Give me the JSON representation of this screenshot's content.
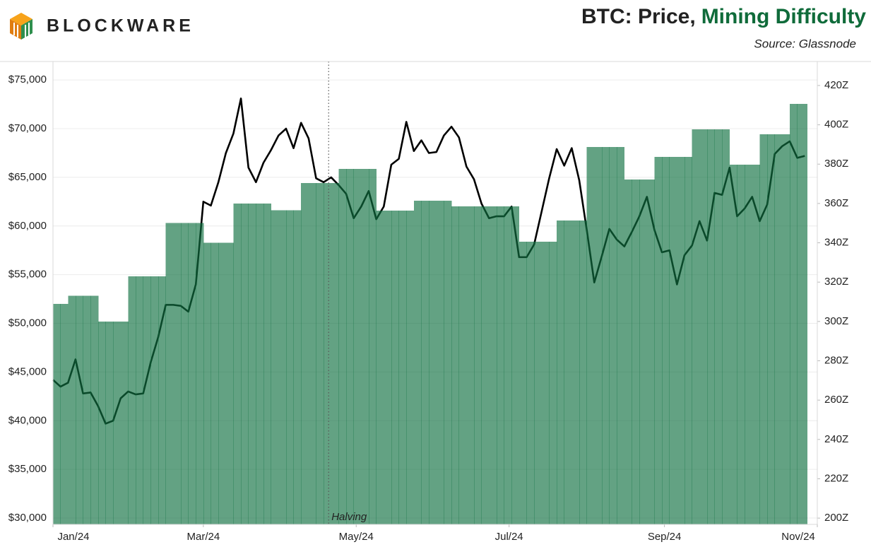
{
  "brand": "BLOCKWARE",
  "chart_data": {
    "type": "line",
    "title": [
      "BTC: Price,",
      "Mining Difficulty"
    ],
    "source": "Source: Glassnode",
    "annotation": {
      "text": "Halving",
      "x": 110
    },
    "x": [
      0,
      3,
      6,
      9,
      12,
      15,
      18,
      21,
      24,
      27,
      30,
      33,
      36,
      39,
      42,
      45,
      48,
      51,
      54,
      57,
      60,
      63,
      66,
      69,
      72,
      75,
      78,
      81,
      84,
      87,
      90,
      93,
      96,
      99,
      102,
      105,
      108,
      111,
      114,
      117,
      120,
      123,
      126,
      129,
      132,
      135,
      138,
      141,
      144,
      147,
      150,
      153,
      156,
      159,
      162,
      165,
      168,
      171,
      174,
      177,
      180,
      183,
      186,
      189,
      192,
      195,
      198,
      201,
      204,
      207,
      210,
      213,
      216,
      219,
      222,
      225,
      228,
      231,
      234,
      237,
      240,
      243,
      246,
      249,
      252,
      255,
      258,
      261,
      264,
      267,
      270,
      273,
      276,
      279,
      282,
      285,
      288,
      291,
      294,
      297,
      300
    ],
    "xlim": [
      0,
      305
    ],
    "xticks": [
      {
        "value": 0,
        "label": "Jan/24"
      },
      {
        "value": 60,
        "label": "Mar/24"
      },
      {
        "value": 121,
        "label": "May/24"
      },
      {
        "value": 182,
        "label": "Jul/24"
      },
      {
        "value": 244,
        "label": "Sep/24"
      },
      {
        "value": 305,
        "label": "Nov/24"
      }
    ],
    "ylim": [
      29350,
      76900
    ],
    "yticks": [
      {
        "value": 30000,
        "label": "$30,000"
      },
      {
        "value": 35000,
        "label": "$35,000"
      },
      {
        "value": 40000,
        "label": "$40,000"
      },
      {
        "value": 45000,
        "label": "$45,000"
      },
      {
        "value": 50000,
        "label": "$50,000"
      },
      {
        "value": 55000,
        "label": "$55,000"
      },
      {
        "value": 60000,
        "label": "$60,000"
      },
      {
        "value": 65000,
        "label": "$65,000"
      },
      {
        "value": 70000,
        "label": "$70,000"
      },
      {
        "value": 75000,
        "label": "$75,000"
      }
    ],
    "y2lim": [
      196.8,
      432.2
    ],
    "y2ticks": [
      {
        "value": 200,
        "label": "200Z"
      },
      {
        "value": 220,
        "label": "220Z"
      },
      {
        "value": 240,
        "label": "240Z"
      },
      {
        "value": 260,
        "label": "260Z"
      },
      {
        "value": 280,
        "label": "280Z"
      },
      {
        "value": 300,
        "label": "300Z"
      },
      {
        "value": 320,
        "label": "320Z"
      },
      {
        "value": 340,
        "label": "340Z"
      },
      {
        "value": 360,
        "label": "360Z"
      },
      {
        "value": 380,
        "label": "380Z"
      },
      {
        "value": 400,
        "label": "400Z"
      },
      {
        "value": 420,
        "label": "420Z"
      }
    ],
    "grid": true,
    "series": [
      {
        "type": "line",
        "color": "#000000",
        "values": [
          44200,
          43500,
          43900,
          46300,
          42800,
          42900,
          41500,
          39700,
          40000,
          42300,
          43000,
          42700,
          42800,
          46000,
          48600,
          51900,
          51900,
          51800,
          51200,
          54000,
          62500,
          62100,
          64500,
          67500,
          69500,
          73100,
          66000,
          64500,
          66500,
          67800,
          69300,
          70000,
          68000,
          70600,
          69000,
          64900,
          64500,
          65000,
          64200,
          63300,
          60800,
          62000,
          63600,
          60700,
          62000,
          66300,
          66900,
          70700,
          67700,
          68800,
          67500,
          67600,
          69300,
          70200,
          69100,
          66100,
          64800,
          62300,
          60800,
          61000,
          61000,
          62000,
          56800,
          56800,
          58100,
          61500,
          64900,
          67900,
          66200,
          68000,
          64700,
          59600,
          54200,
          56900,
          59700,
          58600,
          57900,
          59400,
          61000,
          63000,
          59600,
          57300,
          57500,
          54000,
          57000,
          58000,
          60500,
          58500,
          63400,
          63200,
          66000,
          61000,
          61800,
          63000,
          60500,
          62200,
          67400,
          68200,
          68700,
          67000,
          67200
        ]
      },
      {
        "type": "area",
        "color": "#107040",
        "axis": "y2",
        "values": [
          309,
          309,
          313,
          313,
          313,
          313,
          300,
          300,
          300,
          300,
          323,
          323,
          323,
          323,
          323,
          350,
          350,
          350,
          350,
          350,
          340,
          340,
          340,
          340,
          360,
          360,
          360,
          360,
          360,
          356.5,
          356.5,
          356.5,
          356.5,
          370.4,
          370.4,
          370.4,
          370.4,
          370.4,
          377.6,
          377.6,
          377.6,
          377.6,
          377.6,
          356.3,
          356.3,
          356.3,
          356.3,
          356.3,
          361.4,
          361.4,
          361.4,
          361.4,
          361.4,
          358.5,
          358.5,
          358.5,
          358.5,
          358.5,
          358.5,
          358.5,
          358.5,
          358.5,
          340.5,
          340.5,
          340.5,
          340.5,
          340.5,
          351.3,
          351.3,
          351.3,
          351.3,
          388.7,
          388.7,
          388.7,
          388.7,
          388.7,
          372.2,
          372.2,
          372.2,
          372.2,
          383.7,
          383.7,
          383.7,
          383.7,
          383.7,
          397.7,
          397.7,
          397.7,
          397.7,
          397.7,
          379.7,
          379.7,
          379.7,
          379.7,
          395.2,
          395.2,
          395.2,
          395.2,
          410.6,
          410.6,
          410.6
        ]
      }
    ]
  }
}
